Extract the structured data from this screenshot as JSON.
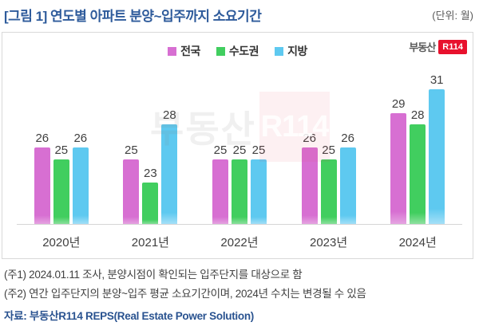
{
  "header": {
    "title": "[그림 1] 연도별 아파트 분양~입주까지 소요기간",
    "unit": "(단위: 월)"
  },
  "logo": {
    "prefix": "부동산",
    "badge": "R114"
  },
  "watermark": {
    "prefix": "부동산",
    "badge": "R114"
  },
  "chart_data": {
    "type": "bar",
    "title": "연도별 아파트 분양~입주까지 소요기간",
    "unit_label": "월",
    "categories": [
      "2020년",
      "2021년",
      "2022년",
      "2023년",
      "2024년"
    ],
    "series": [
      {
        "name": "전국",
        "color": "#d76fd2",
        "color_light": "#e6a8e2",
        "values": [
          26,
          25,
          25,
          26,
          29
        ]
      },
      {
        "name": "수도권",
        "color": "#41ce5f",
        "color_light": "#93e2a4",
        "values": [
          25,
          23,
          25,
          25,
          28
        ]
      },
      {
        "name": "지방",
        "color": "#5ec9f0",
        "color_light": "#a9e1f8",
        "values": [
          26,
          28,
          25,
          26,
          31
        ]
      }
    ],
    "ylim": [
      19.4,
      33
    ],
    "grid": false,
    "legend_position": "top",
    "value_labels": true
  },
  "notes": {
    "note1": "(주1) 2024.01.11 조사, 분양시점이 확인되는 입주단지를 대상으로 함",
    "note2": "(주2) 연간 입주단지의 분양~입주 평균 소요기간이며, 2024년 수치는 변경될 수 있음",
    "source": "자료: 부동산R114 REPS(Real Estate Power Solution)"
  }
}
